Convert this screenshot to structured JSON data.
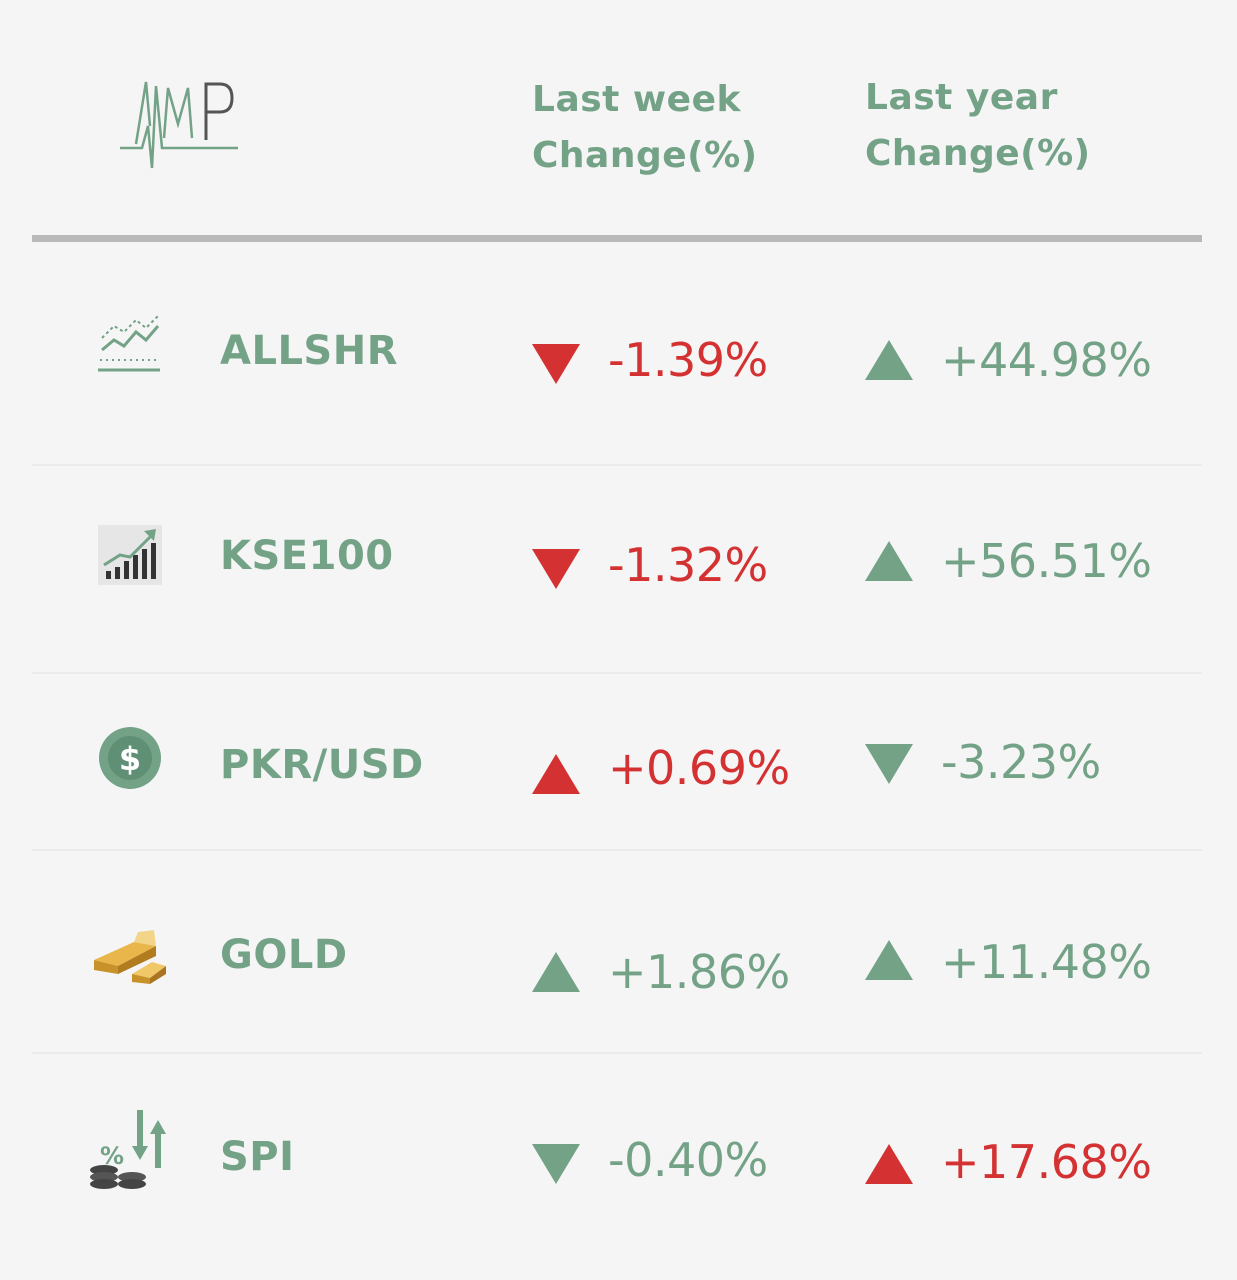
{
  "header": {
    "logo_text": "AMP",
    "week_header_line1": "Last week",
    "week_header_line2": "Change(%)",
    "year_header_line1": "Last year",
    "year_header_line2": "Change(%)"
  },
  "colors": {
    "green": "#73a287",
    "red": "#d43232",
    "background": "#f5f5f5"
  },
  "rows": [
    {
      "name": "ALLSHR",
      "icon": "line-chart-icon",
      "week": {
        "value": "-1.39%",
        "direction": "down",
        "color": "red"
      },
      "year": {
        "value": "+44.98%",
        "direction": "up",
        "color": "green"
      }
    },
    {
      "name": "KSE100",
      "icon": "bar-chart-growth-icon",
      "week": {
        "value": "-1.32%",
        "direction": "down",
        "color": "red"
      },
      "year": {
        "value": "+56.51%",
        "direction": "up",
        "color": "green"
      }
    },
    {
      "name": "PKR/USD",
      "icon": "dollar-coin-icon",
      "week": {
        "value": "+0.69%",
        "direction": "up",
        "color": "red"
      },
      "year": {
        "value": "-3.23%",
        "direction": "down",
        "color": "green"
      }
    },
    {
      "name": "GOLD",
      "icon": "gold-bar-icon",
      "week": {
        "value": "+1.86%",
        "direction": "up",
        "color": "green"
      },
      "year": {
        "value": "+11.48%",
        "direction": "up",
        "color": "green"
      }
    },
    {
      "name": "SPI",
      "icon": "inflation-coins-icon",
      "week": {
        "value": "-0.40%",
        "direction": "down",
        "color": "green"
      },
      "year": {
        "value": "+17.68%",
        "direction": "up",
        "color": "red"
      }
    }
  ]
}
